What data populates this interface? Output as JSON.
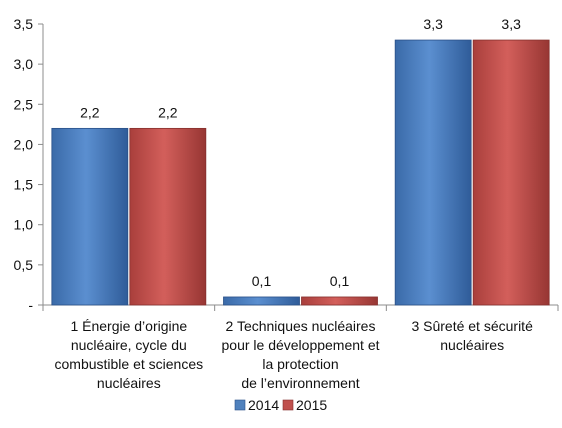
{
  "chart_data": {
    "type": "bar",
    "categories": [
      "1 Énergie d’origine nucléaire, cycle du combustible et sciences nucléaires",
      "2 Techniques nucléaires pour le développement et la protection de l’environnement",
      "3 Sûreté et sécurité nucléaires"
    ],
    "category_lines": [
      [
        "1 Énergie d’origine",
        "nucléaire, cycle du",
        "combustible et sciences",
        "nucléaires"
      ],
      [
        "2 Techniques nucléaires",
        "pour le développement et",
        "la protection",
        "de l’environnement"
      ],
      [
        "3 Sûreté et sécurité",
        "nucléaires"
      ]
    ],
    "series": [
      {
        "name": "2014",
        "values": [
          2.2,
          0.1,
          3.3
        ],
        "labels": [
          "2,2",
          "0,1",
          "3,3"
        ],
        "color": "#4f81bd"
      },
      {
        "name": "2015",
        "values": [
          2.2,
          0.1,
          3.3
        ],
        "labels": [
          "2,2",
          "0,1",
          "3,3"
        ],
        "color": "#c0504d"
      }
    ],
    "ylim": [
      0,
      3.5
    ],
    "yticks": [
      0,
      0.5,
      1.0,
      1.5,
      2.0,
      2.5,
      3.0,
      3.5
    ],
    "ytick_labels": [
      "-",
      "0,5",
      "1,0",
      "1,5",
      "2,0",
      "2,5",
      "3,0",
      "3,5"
    ],
    "grid": false,
    "legend_position": "bottom-center",
    "xlabel": "",
    "ylabel": ""
  }
}
